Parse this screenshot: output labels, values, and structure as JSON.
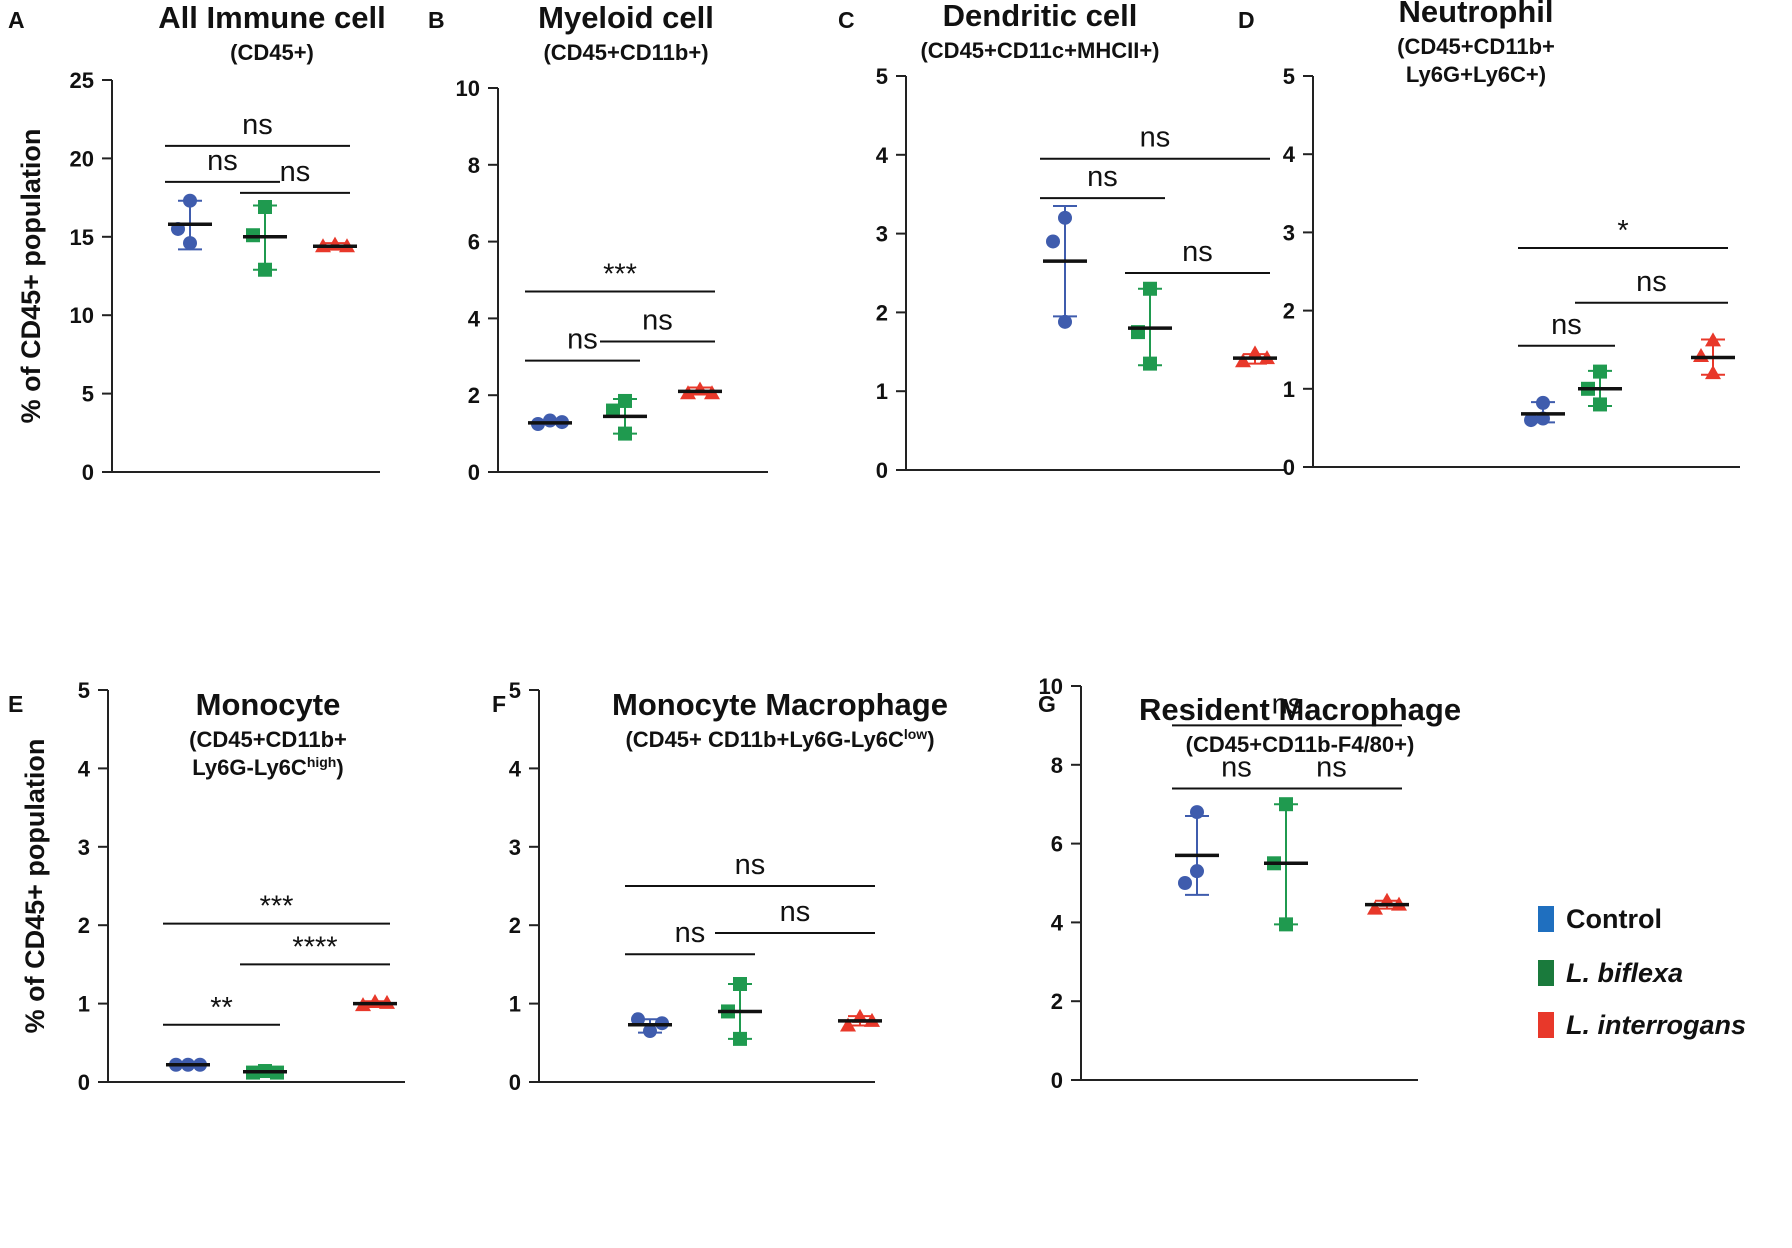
{
  "chart_data": {
    "series_legend": [
      {
        "name": "Control",
        "color": "#3f5cad",
        "legend_color": "#1f6fbf",
        "marker": "circle",
        "italic": false
      },
      {
        "name": "L. biflexa",
        "color": "#1f9a4f",
        "legend_color": "#1a7a3c",
        "marker": "square",
        "italic": true
      },
      {
        "name": "L. interrogans",
        "color": "#e8382a",
        "legend_color": "#e8382a",
        "marker": "triangle",
        "italic": true
      }
    ],
    "ylabel": "% of CD45+ population",
    "panels": [
      {
        "id": "A",
        "type": "scatter",
        "title": "All Immune cell",
        "subtitle": [
          "(CD45+)"
        ],
        "ylim": [
          0,
          25
        ],
        "yticks": [
          0,
          5,
          10,
          15,
          20,
          25
        ],
        "show_ylabel": true,
        "groups": [
          {
            "mean": 15.8,
            "err": [
              14.2,
              17.3
            ],
            "points": [
              17.3,
              15.5,
              14.6
            ]
          },
          {
            "mean": 15.0,
            "err": [
              12.9,
              17.0
            ],
            "points": [
              16.9,
              15.1,
              12.9
            ]
          },
          {
            "mean": 14.4,
            "err": [
              14.3,
              14.6
            ],
            "points": [
              14.4,
              14.5,
              14.4
            ]
          }
        ],
        "comparisons": [
          {
            "from": 0,
            "to": 2,
            "y": 20.8,
            "label": "ns"
          },
          {
            "from": 0,
            "to": 1,
            "y": 18.5,
            "label": "ns"
          },
          {
            "from": 1,
            "to": 2,
            "y": 17.8,
            "label": "ns"
          }
        ]
      },
      {
        "id": "B",
        "type": "scatter",
        "title": "Myeloid cell",
        "subtitle": [
          "(CD45+CD11b+)"
        ],
        "ylim": [
          0,
          10
        ],
        "yticks": [
          0,
          2,
          4,
          6,
          8,
          10
        ],
        "show_ylabel": false,
        "groups": [
          {
            "mean": 1.28,
            "err": [
              1.25,
              1.35
            ],
            "points": [
              1.25,
              1.34,
              1.3
            ]
          },
          {
            "mean": 1.45,
            "err": [
              1.0,
              1.9
            ],
            "points": [
              1.85,
              1.6,
              1.0
            ]
          },
          {
            "mean": 2.1,
            "err": [
              2.05,
              2.2
            ],
            "points": [
              2.05,
              2.15,
              2.05
            ]
          }
        ],
        "comparisons": [
          {
            "from": 0,
            "to": 2,
            "y": 4.7,
            "label": "***"
          },
          {
            "from": 0,
            "to": 1,
            "y": 2.9,
            "label": "ns"
          },
          {
            "from": 1,
            "to": 2,
            "y": 3.4,
            "label": "ns"
          }
        ]
      },
      {
        "id": "C",
        "type": "scatter",
        "title": "Dendritic cell",
        "subtitle": [
          "(CD45+CD11c+MHCII+)"
        ],
        "ylim": [
          0,
          5
        ],
        "yticks": [
          0,
          1,
          2,
          3,
          4,
          5
        ],
        "show_ylabel": false,
        "groups": [
          {
            "mean": 2.65,
            "err": [
              1.95,
              3.35
            ],
            "points": [
              3.2,
              2.9,
              1.88
            ]
          },
          {
            "mean": 1.8,
            "err": [
              1.33,
              2.3
            ],
            "points": [
              2.3,
              1.75,
              1.35
            ]
          },
          {
            "mean": 1.42,
            "err": [
              1.35,
              1.47
            ],
            "points": [
              1.38,
              1.48,
              1.42
            ]
          }
        ],
        "comparisons": [
          {
            "from": 0,
            "to": 2,
            "y": 3.95,
            "label": "ns"
          },
          {
            "from": 0,
            "to": 1,
            "y": 3.45,
            "label": "ns"
          },
          {
            "from": 1,
            "to": 2,
            "y": 2.5,
            "label": "ns"
          }
        ]
      },
      {
        "id": "D",
        "type": "scatter",
        "title": "Neutrophil",
        "subtitle": [
          "(CD45+CD11b+",
          "Ly6G+Ly6C+)"
        ],
        "ylim": [
          0,
          5
        ],
        "yticks": [
          0,
          1,
          2,
          3,
          4,
          5
        ],
        "show_ylabel": false,
        "groups": [
          {
            "mean": 0.68,
            "err": [
              0.57,
              0.83
            ],
            "points": [
              0.82,
              0.6,
              0.62
            ]
          },
          {
            "mean": 1.0,
            "err": [
              0.78,
              1.23
            ],
            "points": [
              1.22,
              1.0,
              0.8
            ]
          },
          {
            "mean": 1.4,
            "err": [
              1.18,
              1.63
            ],
            "points": [
              1.62,
              1.42,
              1.2
            ]
          }
        ],
        "comparisons": [
          {
            "from": 0,
            "to": 2,
            "y": 2.8,
            "label": "*"
          },
          {
            "from": 0,
            "to": 1,
            "y": 1.55,
            "label": "ns"
          },
          {
            "from": 1,
            "to": 2,
            "y": 2.1,
            "label": "ns"
          }
        ]
      },
      {
        "id": "E",
        "type": "scatter",
        "title": "Monocyte",
        "subtitle": [
          "(CD45+CD11b+",
          "Ly6G-Ly6C"
        ],
        "subtitle_sup": "high",
        "subtitle_tail": ")",
        "ylim": [
          0,
          5
        ],
        "yticks": [
          0,
          1,
          2,
          3,
          4,
          5
        ],
        "show_ylabel": true,
        "groups": [
          {
            "mean": 0.22,
            "err": [
              0.2,
              0.24
            ],
            "points": [
              0.22,
              0.22,
              0.22
            ]
          },
          {
            "mean": 0.13,
            "err": [
              0.11,
              0.15
            ],
            "points": [
              0.12,
              0.14,
              0.12
            ]
          },
          {
            "mean": 1.0,
            "err": [
              0.98,
              1.03
            ],
            "points": [
              0.98,
              1.02,
              1.01
            ]
          }
        ],
        "comparisons": [
          {
            "from": 0,
            "to": 2,
            "y": 2.02,
            "label": "***"
          },
          {
            "from": 0,
            "to": 1,
            "y": 0.73,
            "label": "**"
          },
          {
            "from": 1,
            "to": 2,
            "y": 1.5,
            "label": "****"
          }
        ]
      },
      {
        "id": "F",
        "type": "scatter",
        "title": "Monocyte Macrophage",
        "subtitle": [
          "(CD45+ CD11b+Ly6G-Ly6C"
        ],
        "subtitle_sup": "low",
        "subtitle_tail": ")",
        "ylim": [
          0,
          5
        ],
        "yticks": [
          0,
          1,
          2,
          3,
          4,
          5
        ],
        "show_ylabel": false,
        "groups": [
          {
            "mean": 0.73,
            "err": [
              0.63,
              0.8
            ],
            "points": [
              0.8,
              0.65,
              0.75
            ]
          },
          {
            "mean": 0.9,
            "err": [
              0.55,
              1.25
            ],
            "points": [
              1.25,
              0.9,
              0.55
            ]
          },
          {
            "mean": 0.78,
            "err": [
              0.72,
              0.84
            ],
            "points": [
              0.72,
              0.83,
              0.78
            ]
          }
        ],
        "comparisons": [
          {
            "from": 0,
            "to": 2,
            "y": 2.5,
            "label": "ns"
          },
          {
            "from": 0,
            "to": 1,
            "y": 1.63,
            "label": "ns"
          },
          {
            "from": 1,
            "to": 2,
            "y": 1.9,
            "label": "ns"
          }
        ]
      },
      {
        "id": "G",
        "type": "scatter",
        "title": "Resident Macrophage",
        "subtitle": [
          "(CD45+CD11b-F4/80+)"
        ],
        "ylim": [
          0,
          10
        ],
        "yticks": [
          0,
          2,
          4,
          6,
          8,
          10
        ],
        "show_ylabel": false,
        "groups": [
          {
            "mean": 5.7,
            "err": [
              4.7,
              6.7
            ],
            "points": [
              6.8,
              5.0,
              5.3
            ]
          },
          {
            "mean": 5.5,
            "err": [
              3.95,
              7.0
            ],
            "points": [
              7.0,
              5.5,
              3.95
            ]
          },
          {
            "mean": 4.45,
            "err": [
              4.35,
              4.55
            ],
            "points": [
              4.35,
              4.55,
              4.45
            ]
          }
        ],
        "comparisons": [
          {
            "from": 0,
            "to": 2,
            "y": 9.0,
            "label": "ns"
          },
          {
            "from": 0,
            "to": 1,
            "y": 7.4,
            "label": "ns"
          },
          {
            "from": 1,
            "to": 2,
            "y": 7.4,
            "label": "ns"
          }
        ]
      }
    ]
  }
}
